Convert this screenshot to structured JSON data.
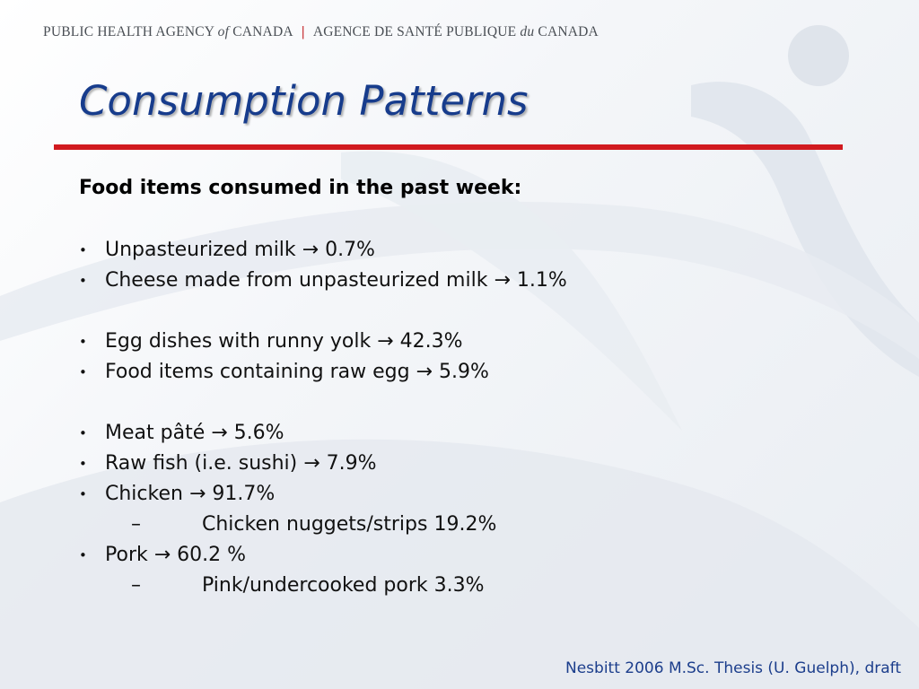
{
  "header": {
    "agency_en_1": "PUBLIC HEALTH AGENCY",
    "agency_en_of": "of",
    "agency_en_2": "CANADA",
    "separator": "|",
    "agency_fr_1": "AGENCE DE SANTÉ PUBLIQUE",
    "agency_fr_du": "du",
    "agency_fr_2": "CANADA"
  },
  "title": "Consumption Patterns",
  "subtitle": "Food items consumed in the past week:",
  "bullet_glyph": "•",
  "dash_glyph": "–",
  "items": {
    "unpasteurized_milk": "Unpasteurized milk → 0.7%",
    "unpasteurized_cheese": "Cheese made from unpasteurized milk → 1.1%",
    "runny_egg": "Egg dishes with runny yolk → 42.3%",
    "raw_egg": "Food items containing raw egg → 5.9%",
    "meat_pate": "Meat pâté → 5.6%",
    "raw_fish": "Raw fish (i.e. sushi) →  7.9%",
    "chicken": "Chicken → 91.7%",
    "chicken_nuggets": "Chicken nuggets/strips 19.2%",
    "pork": "Pork → 60.2 %",
    "pink_pork": "Pink/undercooked pork 3.3%"
  },
  "citation": "Nesbitt 2006 M.Sc. Thesis (U. Guelph), draft",
  "colors": {
    "title": "#173c8c",
    "rule": "#d11a1f",
    "citation": "#1c3e8c"
  }
}
